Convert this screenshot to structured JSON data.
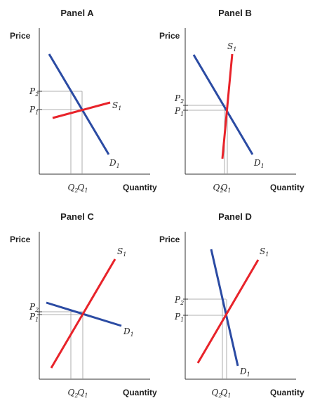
{
  "chart_data": [
    {
      "type": "line",
      "title": "Panel A",
      "xlabel": "Quantity",
      "ylabel": "Price",
      "series": [
        {
          "name": "S",
          "sub": "1",
          "color": "#e8232a"
        },
        {
          "name": "D",
          "sub": "1",
          "color": "#2b4ba3"
        }
      ],
      "price_labels": [
        {
          "name": "P",
          "sub": "2"
        },
        {
          "name": "P",
          "sub": "1"
        }
      ],
      "quantity_labels": [
        {
          "name": "Q",
          "sub": "2"
        },
        {
          "name": "Q",
          "sub": "1"
        }
      ]
    },
    {
      "type": "line",
      "title": "Panel B",
      "xlabel": "Quantity",
      "ylabel": "Price",
      "series": [
        {
          "name": "S",
          "sub": "1",
          "color": "#e8232a"
        },
        {
          "name": "D",
          "sub": "1",
          "color": "#2b4ba3"
        }
      ],
      "price_labels": [
        {
          "name": "P",
          "sub": "2"
        },
        {
          "name": "P",
          "sub": "1"
        }
      ],
      "quantity_labels": [
        {
          "name": "Q",
          "sub": "2"
        },
        {
          "name": "Q",
          "sub": "1"
        }
      ]
    },
    {
      "type": "line",
      "title": "Panel C",
      "xlabel": "Quantity",
      "ylabel": "Price",
      "series": [
        {
          "name": "S",
          "sub": "1",
          "color": "#e8232a"
        },
        {
          "name": "D",
          "sub": "1",
          "color": "#2b4ba3"
        }
      ],
      "price_labels": [
        {
          "name": "P",
          "sub": "2"
        },
        {
          "name": "P",
          "sub": "1"
        }
      ],
      "quantity_labels": [
        {
          "name": "Q",
          "sub": "2"
        },
        {
          "name": "Q",
          "sub": "1"
        }
      ]
    },
    {
      "type": "line",
      "title": "Panel D",
      "xlabel": "Quantity",
      "ylabel": "Price",
      "series": [
        {
          "name": "S",
          "sub": "1",
          "color": "#e8232a"
        },
        {
          "name": "D",
          "sub": "1",
          "color": "#2b4ba3"
        }
      ],
      "price_labels": [
        {
          "name": "P",
          "sub": "2"
        },
        {
          "name": "P",
          "sub": "1"
        }
      ],
      "quantity_labels": [
        {
          "name": "Q",
          "sub": "2"
        },
        {
          "name": "Q",
          "sub": "1"
        }
      ]
    }
  ]
}
